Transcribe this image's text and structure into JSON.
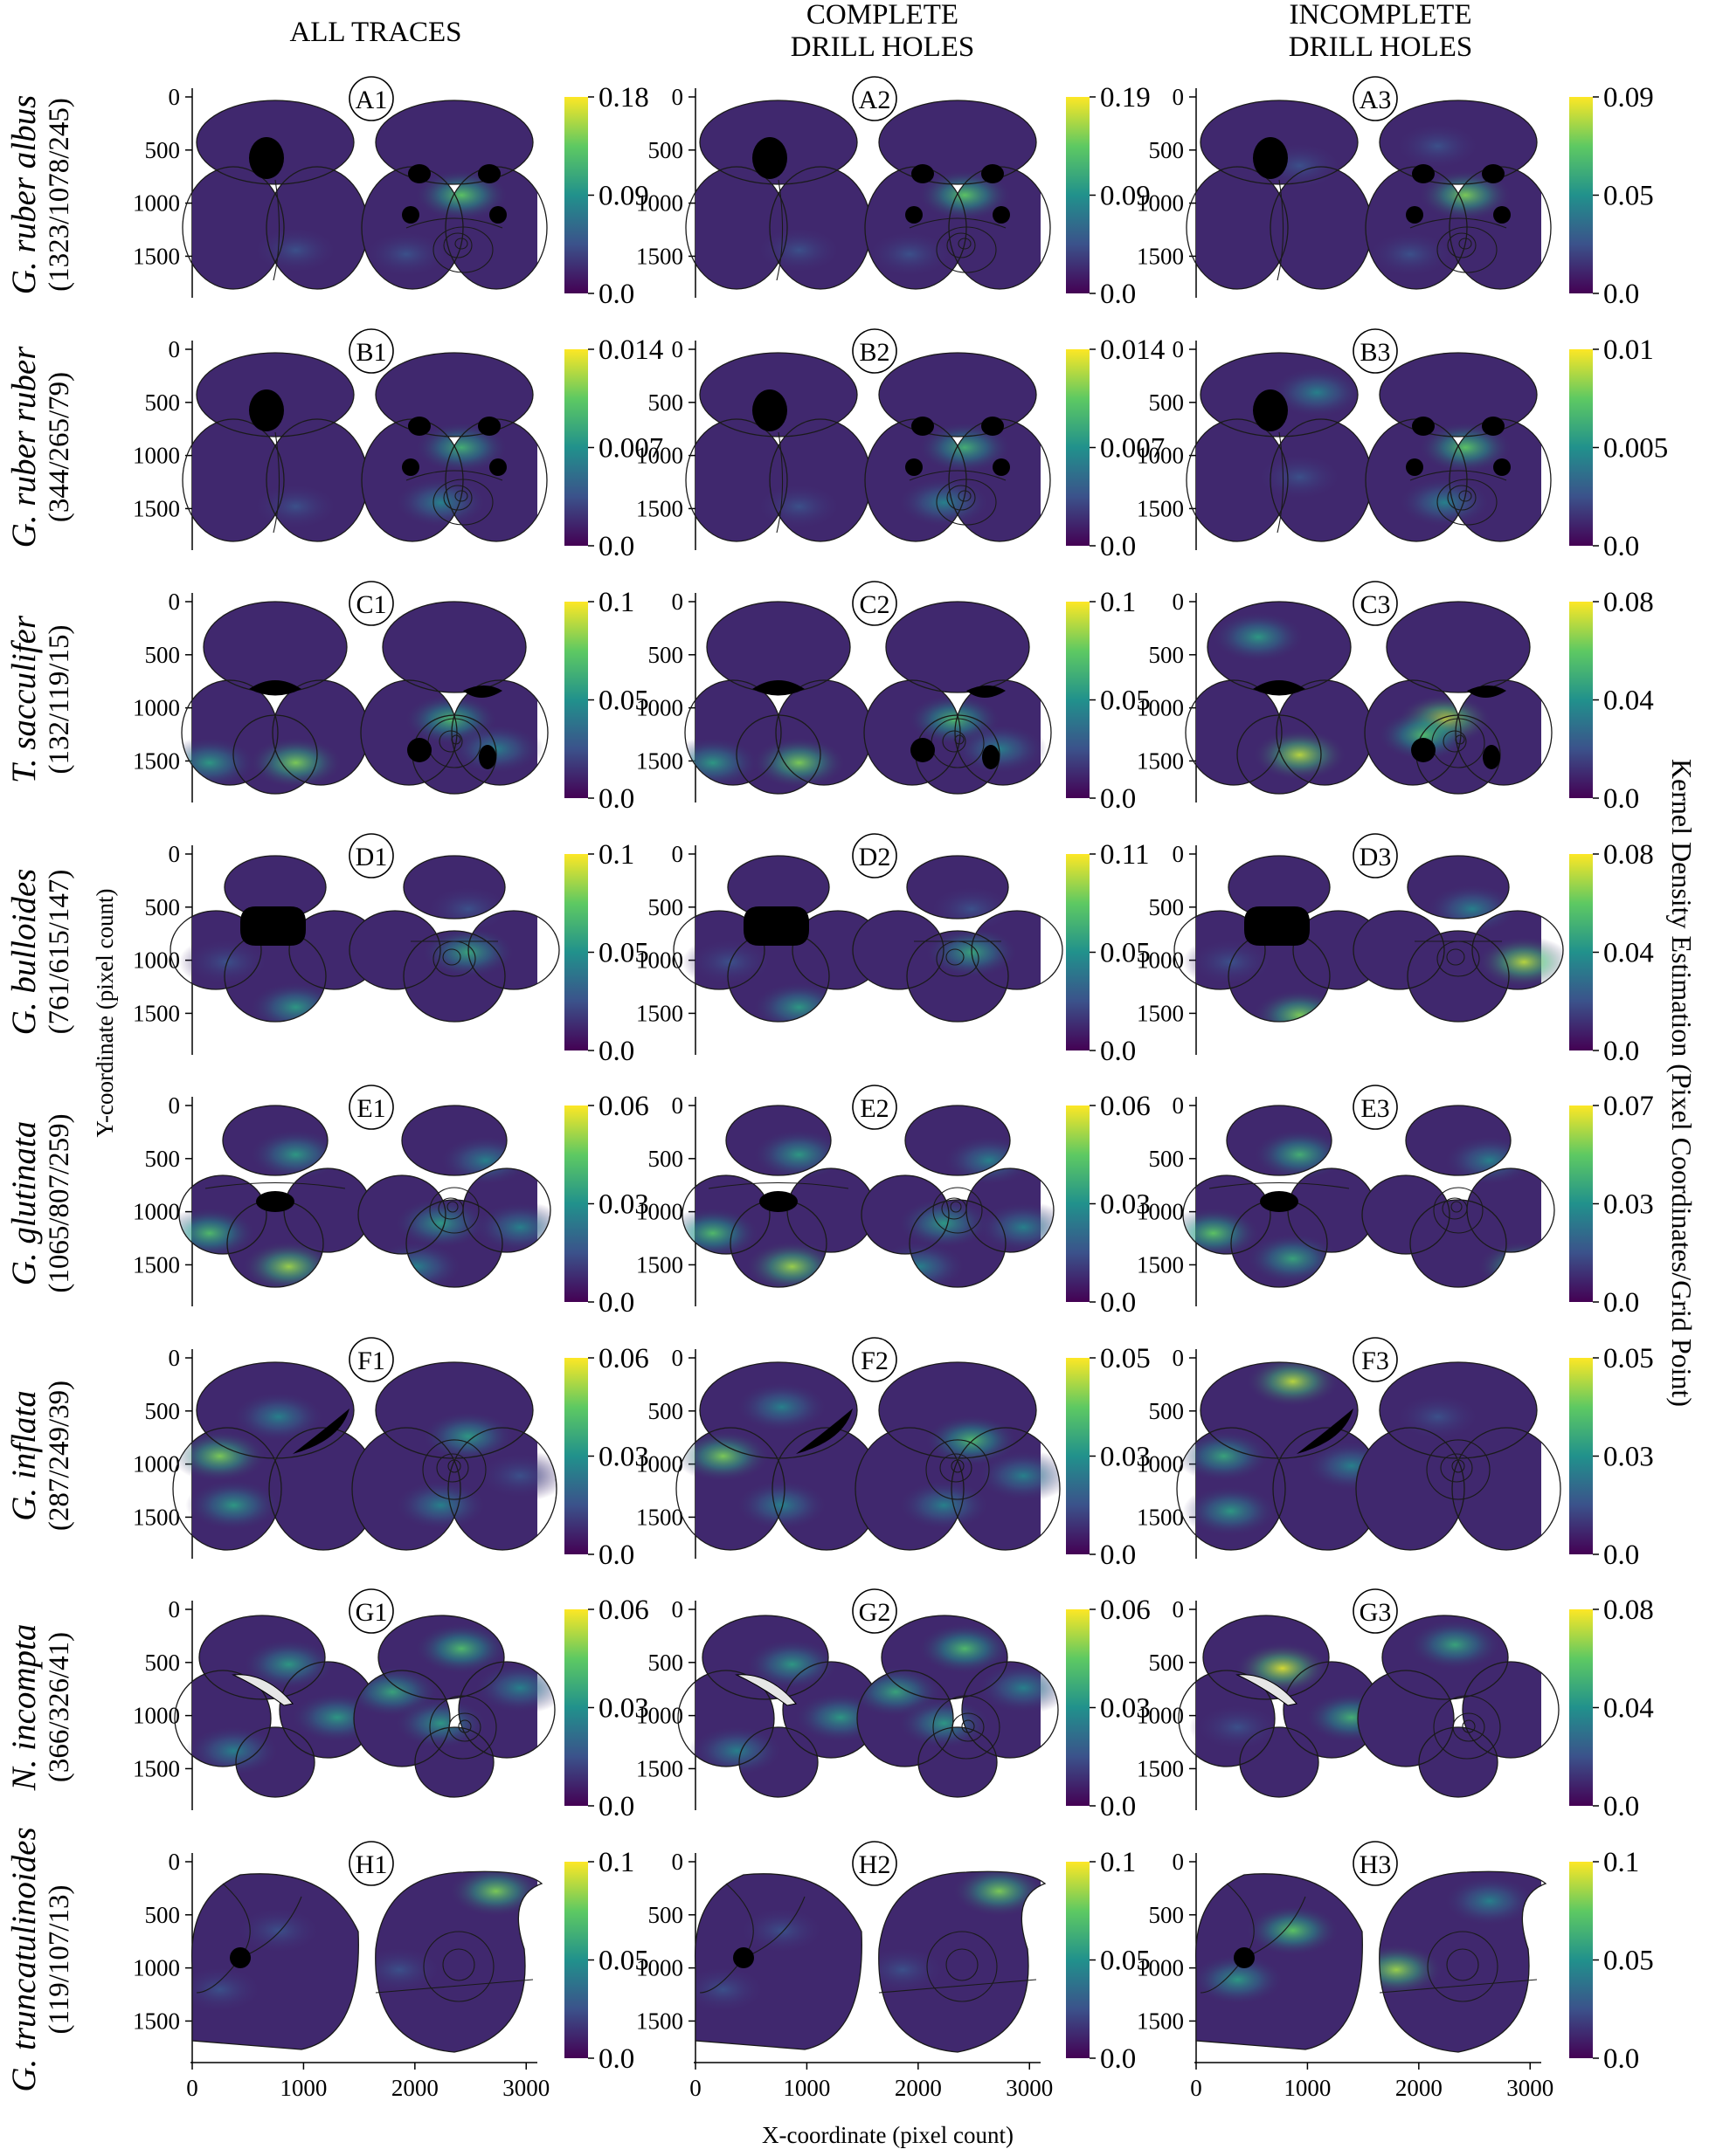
{
  "figure": {
    "column_titles": [
      [
        "ALL TRACES"
      ],
      [
        "COMPLETE",
        "DRILL HOLES"
      ],
      [
        "INCOMPLETE",
        "DRILL HOLES"
      ]
    ],
    "y_axis_title": "Y-coordinate (pixel count)",
    "x_axis_title": "X-coordinate (pixel count)",
    "colorbar_title": "Kernel Density Estimation (Pixel Coordinates/Grid Point)",
    "colors": {
      "viridis": [
        "#440154",
        "#3b528b",
        "#21918c",
        "#5ec962",
        "#fde725"
      ],
      "outline": "#1a1a1a",
      "aperture": "#000000"
    }
  },
  "chart_data": {
    "type": "heatmap",
    "x_ticks": [
      0,
      1000,
      2000,
      3000
    ],
    "y_ticks": [
      0,
      500,
      1000,
      1500
    ],
    "xlim": [
      0,
      3100
    ],
    "ylim": [
      1850,
      0
    ],
    "rows": [
      {
        "id": "A",
        "species": "G. ruber albus",
        "counts": "(1323/1078/245)",
        "shape": "ruber",
        "panels": [
          {
            "label": "A1",
            "cbar": [
              "0.18",
              "0.09",
              "0.0"
            ]
          },
          {
            "label": "A2",
            "cbar": [
              "0.19",
              "0.09",
              "0.0"
            ]
          },
          {
            "label": "A3",
            "cbar": [
              "0.09",
              "0.05",
              "0.0"
            ]
          }
        ]
      },
      {
        "id": "B",
        "species": "G. ruber ruber",
        "counts": "(344/265/79)",
        "shape": "ruber",
        "panels": [
          {
            "label": "B1",
            "cbar": [
              "0.014",
              "0.007",
              "0.0"
            ]
          },
          {
            "label": "B2",
            "cbar": [
              "0.014",
              "0.007",
              "0.0"
            ]
          },
          {
            "label": "B3",
            "cbar": [
              "0.01",
              "0.005",
              "0.0"
            ]
          }
        ]
      },
      {
        "id": "C",
        "species": "T. sacculifer",
        "counts": "(132/119/15)",
        "shape": "sacculifer",
        "panels": [
          {
            "label": "C1",
            "cbar": [
              "0.1",
              "0.05",
              "0.0"
            ]
          },
          {
            "label": "C2",
            "cbar": [
              "0.1",
              "0.05",
              "0.0"
            ]
          },
          {
            "label": "C3",
            "cbar": [
              "0.08",
              "0.04",
              "0.0"
            ]
          }
        ]
      },
      {
        "id": "D",
        "species": "G. bulloides",
        "counts": "(761/615/147)",
        "shape": "bulloides",
        "panels": [
          {
            "label": "D1",
            "cbar": [
              "0.1",
              "0.05",
              "0.0"
            ]
          },
          {
            "label": "D2",
            "cbar": [
              "0.11",
              "0.05",
              "0.0"
            ]
          },
          {
            "label": "D3",
            "cbar": [
              "0.08",
              "0.04",
              "0.0"
            ]
          }
        ]
      },
      {
        "id": "E",
        "species": "G. glutinata",
        "counts": "(1065/807/259)",
        "shape": "glutinata",
        "panels": [
          {
            "label": "E1",
            "cbar": [
              "0.06",
              "0.03",
              "0.0"
            ]
          },
          {
            "label": "E2",
            "cbar": [
              "0.06",
              "0.03",
              "0.0"
            ]
          },
          {
            "label": "E3",
            "cbar": [
              "0.07",
              "0.03",
              "0.0"
            ]
          }
        ]
      },
      {
        "id": "F",
        "species": "G. inflata",
        "counts": "(287/249/39)",
        "shape": "inflata",
        "panels": [
          {
            "label": "F1",
            "cbar": [
              "0.06",
              "0.03",
              "0.0"
            ]
          },
          {
            "label": "F2",
            "cbar": [
              "0.05",
              "0.03",
              "0.0"
            ]
          },
          {
            "label": "F3",
            "cbar": [
              "0.05",
              "0.03",
              "0.0"
            ]
          }
        ]
      },
      {
        "id": "G",
        "species": "N. incompta",
        "counts": "(366/326/41)",
        "shape": "incompta",
        "panels": [
          {
            "label": "G1",
            "cbar": [
              "0.06",
              "0.03",
              "0.0"
            ]
          },
          {
            "label": "G2",
            "cbar": [
              "0.06",
              "0.03",
              "0.0"
            ]
          },
          {
            "label": "G3",
            "cbar": [
              "0.08",
              "0.04",
              "0.0"
            ]
          }
        ]
      },
      {
        "id": "H",
        "species": "G. truncatulinoides",
        "counts": "(119/107/13)",
        "shape": "truncatulinoides",
        "panels": [
          {
            "label": "H1",
            "cbar": [
              "0.1",
              "0.05",
              "0.0"
            ]
          },
          {
            "label": "H2",
            "cbar": [
              "0.1",
              "0.05",
              "0.0"
            ]
          },
          {
            "label": "H3",
            "cbar": [
              "0.1",
              "0.05",
              "0.0"
            ]
          }
        ]
      }
    ],
    "hotspots": {
      "A": [
        [
          [
            0.78,
            0.5,
            0.75
          ],
          [
            0.3,
            0.78,
            0.2
          ],
          [
            0.62,
            0.8,
            0.2
          ]
        ],
        [
          [
            0.78,
            0.5,
            0.75
          ],
          [
            0.3,
            0.78,
            0.2
          ],
          [
            0.62,
            0.8,
            0.2
          ]
        ],
        [
          [
            0.78,
            0.5,
            0.8
          ],
          [
            0.7,
            0.25,
            0.3
          ],
          [
            0.3,
            0.35,
            0.25
          ],
          [
            0.62,
            0.8,
            0.3
          ]
        ]
      ],
      "B": [
        [
          [
            0.78,
            0.5,
            0.65
          ],
          [
            0.72,
            0.78,
            0.45
          ],
          [
            0.3,
            0.8,
            0.25
          ]
        ],
        [
          [
            0.78,
            0.5,
            0.65
          ],
          [
            0.72,
            0.78,
            0.45
          ],
          [
            0.3,
            0.8,
            0.25
          ]
        ],
        [
          [
            0.78,
            0.5,
            0.75
          ],
          [
            0.72,
            0.78,
            0.45
          ],
          [
            0.35,
            0.22,
            0.4
          ],
          [
            0.3,
            0.65,
            0.25
          ]
        ]
      ],
      "C": [
        [
          [
            0.3,
            0.82,
            0.8
          ],
          [
            0.05,
            0.82,
            0.55
          ],
          [
            0.75,
            0.6,
            0.7
          ],
          [
            0.88,
            0.75,
            0.4
          ]
        ],
        [
          [
            0.3,
            0.82,
            0.8
          ],
          [
            0.05,
            0.82,
            0.55
          ],
          [
            0.75,
            0.6,
            0.7
          ],
          [
            0.88,
            0.75,
            0.4
          ]
        ],
        [
          [
            0.3,
            0.78,
            0.9
          ],
          [
            0.18,
            0.18,
            0.55
          ],
          [
            0.72,
            0.6,
            0.95
          ],
          [
            0.66,
            0.68,
            0.7
          ]
        ]
      ],
      "D": [
        [
          [
            0.3,
            0.78,
            0.55
          ],
          [
            0.1,
            0.55,
            0.35
          ],
          [
            0.8,
            0.5,
            0.6
          ],
          [
            0.8,
            0.28,
            0.3
          ]
        ],
        [
          [
            0.3,
            0.78,
            0.55
          ],
          [
            0.1,
            0.55,
            0.35
          ],
          [
            0.8,
            0.5,
            0.6
          ],
          [
            0.8,
            0.28,
            0.3
          ]
        ],
        [
          [
            0.3,
            0.82,
            0.8
          ],
          [
            0.1,
            0.55,
            0.35
          ],
          [
            0.95,
            0.55,
            0.9
          ],
          [
            0.8,
            0.28,
            0.45
          ]
        ]
      ],
      "E": [
        [
          [
            0.28,
            0.82,
            0.85
          ],
          [
            0.05,
            0.65,
            0.7
          ],
          [
            0.3,
            0.25,
            0.55
          ],
          [
            0.72,
            0.6,
            0.55
          ],
          [
            0.85,
            0.28,
            0.45
          ],
          [
            0.95,
            0.62,
            0.4
          ],
          [
            0.65,
            0.82,
            0.5
          ]
        ],
        [
          [
            0.28,
            0.82,
            0.85
          ],
          [
            0.05,
            0.65,
            0.7
          ],
          [
            0.3,
            0.25,
            0.55
          ],
          [
            0.72,
            0.6,
            0.55
          ],
          [
            0.85,
            0.28,
            0.45
          ],
          [
            0.95,
            0.62,
            0.4
          ],
          [
            0.65,
            0.82,
            0.5
          ]
        ],
        [
          [
            0.28,
            0.78,
            0.6
          ],
          [
            0.05,
            0.65,
            0.75
          ],
          [
            0.3,
            0.25,
            0.65
          ],
          [
            0.95,
            0.82,
            0.8
          ],
          [
            0.85,
            0.28,
            0.5
          ]
        ]
      ],
      "F": [
        [
          [
            0.08,
            0.5,
            0.8
          ],
          [
            0.12,
            0.75,
            0.55
          ],
          [
            0.25,
            0.3,
            0.4
          ],
          [
            0.8,
            0.4,
            0.55
          ],
          [
            0.72,
            0.75,
            0.4
          ],
          [
            0.95,
            0.6,
            0.35
          ]
        ],
        [
          [
            0.08,
            0.5,
            0.8
          ],
          [
            0.25,
            0.75,
            0.5
          ],
          [
            0.25,
            0.25,
            0.45
          ],
          [
            0.8,
            0.42,
            0.7
          ],
          [
            0.72,
            0.75,
            0.45
          ],
          [
            0.95,
            0.6,
            0.45
          ]
        ],
        [
          [
            0.28,
            0.12,
            0.9
          ],
          [
            0.08,
            0.5,
            0.6
          ],
          [
            0.1,
            0.78,
            0.55
          ],
          [
            0.45,
            0.55,
            0.45
          ],
          [
            0.7,
            0.3,
            0.3
          ]
        ]
      ],
      "G": [
        [
          [
            0.28,
            0.28,
            0.55
          ],
          [
            0.42,
            0.55,
            0.55
          ],
          [
            0.12,
            0.72,
            0.5
          ],
          [
            0.78,
            0.2,
            0.7
          ],
          [
            0.58,
            0.42,
            0.6
          ],
          [
            0.72,
            0.58,
            0.55
          ],
          [
            0.95,
            0.4,
            0.4
          ]
        ],
        [
          [
            0.28,
            0.28,
            0.55
          ],
          [
            0.42,
            0.55,
            0.55
          ],
          [
            0.12,
            0.72,
            0.5
          ],
          [
            0.78,
            0.2,
            0.7
          ],
          [
            0.58,
            0.42,
            0.6
          ],
          [
            0.72,
            0.58,
            0.55
          ],
          [
            0.95,
            0.4,
            0.4
          ]
        ],
        [
          [
            0.25,
            0.3,
            0.95
          ],
          [
            0.45,
            0.55,
            0.65
          ],
          [
            0.12,
            0.6,
            0.35
          ],
          [
            0.75,
            0.18,
            0.6
          ]
        ]
      ],
      "H": [
        [
          [
            0.25,
            0.35,
            0.35
          ],
          [
            0.08,
            0.65,
            0.3
          ],
          [
            0.88,
            0.15,
            0.8
          ],
          [
            0.6,
            0.55,
            0.3
          ]
        ],
        [
          [
            0.25,
            0.35,
            0.35
          ],
          [
            0.08,
            0.65,
            0.3
          ],
          [
            0.88,
            0.15,
            0.8
          ],
          [
            0.6,
            0.55,
            0.3
          ]
        ],
        [
          [
            0.28,
            0.35,
            0.75
          ],
          [
            0.12,
            0.6,
            0.55
          ],
          [
            0.58,
            0.55,
            0.85
          ],
          [
            0.85,
            0.2,
            0.45
          ]
        ]
      ]
    }
  }
}
